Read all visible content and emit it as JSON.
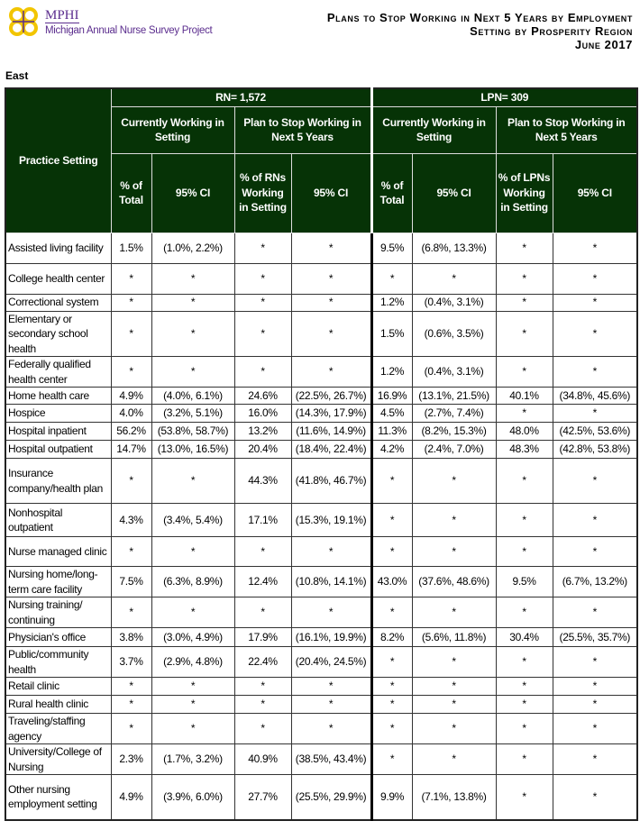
{
  "header": {
    "logo_text": "MPHI",
    "logo_subtitle": "Michigan Annual Nurse Survey Project",
    "title_lines": [
      "Plans to Stop Working in Next 5 Years by Employment",
      "Setting by Prosperity Region",
      "June 2017"
    ]
  },
  "region": "East",
  "table": {
    "practice_setting_header": "Practice Setting",
    "rn_header": "RN= 1,572",
    "lpn_header": "LPN= 309",
    "group_current": "Currently Working in Setting",
    "group_plan": "Plan to Stop Working in Next 5 Years",
    "col_pct_total": "% of Total",
    "col_ci": "95% CI",
    "col_pct_rns": "% of RNs Working in Setting",
    "col_pct_lpns": "% of LPNs Working in Setting",
    "rows": [
      {
        "setting": "Assisted living facility",
        "v": [
          "1.5%",
          "(1.0%, 2.2%)",
          "*",
          "*",
          "9.5%",
          "(6.8%, 13.3%)",
          "*",
          "*"
        ]
      },
      {
        "setting": "College health center",
        "v": [
          "*",
          "*",
          "*",
          "*",
          "*",
          "*",
          "*",
          "*"
        ]
      },
      {
        "setting": "Correctional system",
        "v": [
          "*",
          "*",
          "*",
          "*",
          "1.2%",
          "(0.4%, 3.1%)",
          "*",
          "*"
        ]
      },
      {
        "setting": "Elementary or secondary school health",
        "v": [
          "*",
          "*",
          "*",
          "*",
          "1.5%",
          "(0.6%, 3.5%)",
          "*",
          "*"
        ]
      },
      {
        "setting": "Federally qualified health center",
        "v": [
          "*",
          "*",
          "*",
          "*",
          "1.2%",
          "(0.4%, 3.1%)",
          "*",
          "*"
        ]
      },
      {
        "setting": "Home health care",
        "v": [
          "4.9%",
          "(4.0%, 6.1%)",
          "24.6%",
          "(22.5%, 26.7%)",
          "16.9%",
          "(13.1%, 21.5%)",
          "40.1%",
          "(34.8%, 45.6%)"
        ]
      },
      {
        "setting": "Hospice",
        "v": [
          "4.0%",
          "(3.2%, 5.1%)",
          "16.0%",
          "(14.3%, 17.9%)",
          "4.5%",
          "(2.7%, 7.4%)",
          "*",
          "*"
        ]
      },
      {
        "setting": "Hospital inpatient",
        "v": [
          "56.2%",
          "(53.8%, 58.7%)",
          "13.2%",
          "(11.6%, 14.9%)",
          "11.3%",
          "(8.2%, 15.3%)",
          "48.0%",
          "(42.5%, 53.6%)"
        ]
      },
      {
        "setting": "Hospital outpatient",
        "v": [
          "14.7%",
          "(13.0%, 16.5%)",
          "20.4%",
          "(18.4%, 22.4%)",
          "4.2%",
          "(2.4%, 7.0%)",
          "48.3%",
          "(42.8%, 53.8%)"
        ]
      },
      {
        "setting": "Insurance company/health plan",
        "v": [
          "*",
          "*",
          "44.3%",
          "(41.8%, 46.7%)",
          "*",
          "*",
          "*",
          "*"
        ]
      },
      {
        "setting": "Nonhospital outpatient",
        "v": [
          "4.3%",
          "(3.4%, 5.4%)",
          "17.1%",
          "(15.3%, 19.1%)",
          "*",
          "*",
          "*",
          "*"
        ]
      },
      {
        "setting": "Nurse managed clinic",
        "v": [
          "*",
          "*",
          "*",
          "*",
          "*",
          "*",
          "*",
          "*"
        ]
      },
      {
        "setting": "Nursing home/long-term care facility",
        "v": [
          "7.5%",
          "(6.3%, 8.9%)",
          "12.4%",
          "(10.8%, 14.1%)",
          "43.0%",
          "(37.6%, 48.6%)",
          "9.5%",
          "(6.7%, 13.2%)"
        ]
      },
      {
        "setting": "Nursing training/ continuing",
        "v": [
          "*",
          "*",
          "*",
          "*",
          "*",
          "*",
          "*",
          "*"
        ]
      },
      {
        "setting": "Physician's office",
        "v": [
          "3.8%",
          "(3.0%, 4.9%)",
          "17.9%",
          "(16.1%, 19.9%)",
          "8.2%",
          "(5.6%, 11.8%)",
          "30.4%",
          "(25.5%, 35.7%)"
        ]
      },
      {
        "setting": "Public/community health",
        "v": [
          "3.7%",
          "(2.9%, 4.8%)",
          "22.4%",
          "(20.4%, 24.5%)",
          "*",
          "*",
          "*",
          "*"
        ]
      },
      {
        "setting": "Retail clinic",
        "v": [
          "*",
          "*",
          "*",
          "*",
          "*",
          "*",
          "*",
          "*"
        ]
      },
      {
        "setting": "Rural health clinic",
        "v": [
          "*",
          "*",
          "*",
          "*",
          "*",
          "*",
          "*",
          "*"
        ]
      },
      {
        "setting": "Traveling/staffing agency",
        "v": [
          "*",
          "*",
          "*",
          "*",
          "*",
          "*",
          "*",
          "*"
        ]
      },
      {
        "setting": "University/College of Nursing",
        "v": [
          "2.3%",
          "(1.7%, 3.2%)",
          "40.9%",
          "(38.5%, 43.4%)",
          "*",
          "*",
          "*",
          "*"
        ]
      },
      {
        "setting": "Other nursing employment setting",
        "v": [
          "4.9%",
          "(3.9%, 6.0%)",
          "27.7%",
          "(25.5%, 29.9%)",
          "9.9%",
          "(7.1%, 13.8%)",
          "*",
          "*"
        ]
      }
    ]
  }
}
